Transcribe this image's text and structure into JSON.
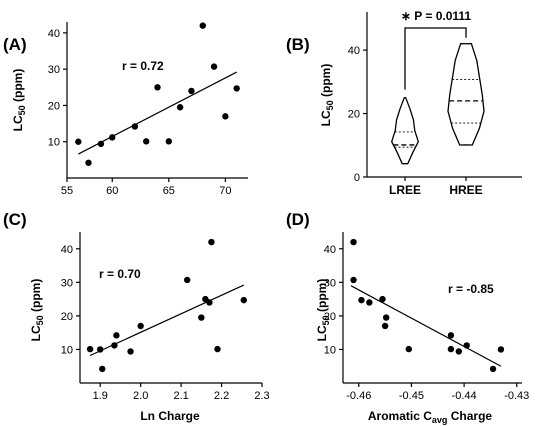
{
  "chart_data": [
    {
      "panel": "(A)",
      "type": "scatter",
      "ylabel": "LC",
      "ylabel_sub": "50",
      "ylabel_unit": " (ppm)",
      "xlabel": "",
      "annotation": "r = 0.72",
      "xlim": [
        56,
        72
      ],
      "ylim": [
        0,
        43
      ],
      "xticks": [
        55,
        60,
        65,
        70
      ],
      "xticklabels": [
        "55",
        "60",
        "65",
        "70"
      ],
      "yticks": [
        10,
        20,
        30,
        40
      ],
      "yticklabels": [
        "10",
        "20",
        "30",
        "40"
      ],
      "x": [
        57.0,
        57.9,
        59.0,
        60.0,
        62.0,
        63.0,
        64.0,
        65.0,
        66.0,
        67.0,
        68.0,
        69.0,
        70.0,
        71.0
      ],
      "y": [
        10.0,
        4.2,
        9.4,
        11.2,
        14.2,
        10.1,
        25.0,
        10.1,
        19.5,
        24.0,
        42.0,
        30.7,
        17.0,
        24.7
      ],
      "fit": [
        [
          57,
          6.6
        ],
        [
          71,
          29.2
        ]
      ]
    },
    {
      "panel": "(B)",
      "type": "violin",
      "ylabel": "LC",
      "ylabel_sub": "50",
      "ylabel_unit": " (ppm)",
      "categories": [
        "LREE",
        "HREE"
      ],
      "ylim": [
        0,
        52
      ],
      "yticks": [
        0,
        20,
        40
      ],
      "yticklabels": [
        "0",
        "20",
        "40"
      ],
      "violins": [
        {
          "name": "LREE",
          "min": 4.2,
          "q1": 9.4,
          "median": 10.1,
          "q3": 14.2,
          "max": 25.0
        },
        {
          "name": "HREE",
          "min": 10.1,
          "q1": 17.0,
          "median": 24.0,
          "q3": 30.7,
          "max": 42.0
        }
      ],
      "significance": "∗ P = 0.0111"
    },
    {
      "panel": "(C)",
      "type": "scatter",
      "ylabel": "LC",
      "ylabel_sub": "50",
      "ylabel_unit": " (ppm)",
      "xlabel": "Ln Charge",
      "annotation": "r = 0.70",
      "xlim": [
        1.85,
        2.3
      ],
      "ylim": [
        0,
        45
      ],
      "xticks": [
        1.9,
        2.0,
        2.1,
        2.2,
        2.3
      ],
      "xticklabels": [
        "1.9",
        "2.0",
        "2.1",
        "2.2",
        "2.3"
      ],
      "yticks": [
        10,
        20,
        30,
        40
      ],
      "yticklabels": [
        "10",
        "20",
        "30",
        "40"
      ],
      "x": [
        1.875,
        1.9,
        1.905,
        1.935,
        1.94,
        1.975,
        2.0,
        2.115,
        2.15,
        2.16,
        2.17,
        2.175,
        2.19,
        2.255
      ],
      "y": [
        10.1,
        10.0,
        4.2,
        11.2,
        14.2,
        9.4,
        17.0,
        30.7,
        19.5,
        25.0,
        24.0,
        42.0,
        10.1,
        24.7
      ],
      "fit": [
        [
          1.875,
          8.2
        ],
        [
          2.255,
          29.2
        ]
      ]
    },
    {
      "panel": "(D)",
      "type": "scatter",
      "ylabel": "LC",
      "ylabel_sub": "50",
      "ylabel_unit": " (ppm)",
      "xlabel": "Aromatic C",
      "xlabel_sub": "avg",
      "xlabel_unit": " Charge",
      "annotation": "r = -0.85",
      "xlim": [
        -0.463,
        -0.429
      ],
      "ylim": [
        0,
        45
      ],
      "xticks": [
        -0.46,
        -0.45,
        -0.44,
        -0.43
      ],
      "xticklabels": [
        "-0.46",
        "-0.45",
        "-0.44",
        "-0.43"
      ],
      "yticks": [
        10,
        20,
        30,
        40
      ],
      "yticklabels": [
        "10",
        "20",
        "30",
        "40"
      ],
      "x": [
        -0.461,
        -0.461,
        -0.4595,
        -0.458,
        -0.4555,
        -0.4548,
        -0.455,
        -0.4505,
        -0.4425,
        -0.4425,
        -0.441,
        -0.4395,
        -0.4345,
        -0.433
      ],
      "y": [
        42.0,
        30.7,
        24.7,
        24.0,
        25.0,
        19.5,
        17.0,
        10.1,
        14.2,
        10.1,
        9.4,
        11.2,
        4.2,
        10.0
      ],
      "fit": [
        [
          -0.4615,
          29.0
        ],
        [
          -0.433,
          5.0
        ]
      ]
    }
  ]
}
